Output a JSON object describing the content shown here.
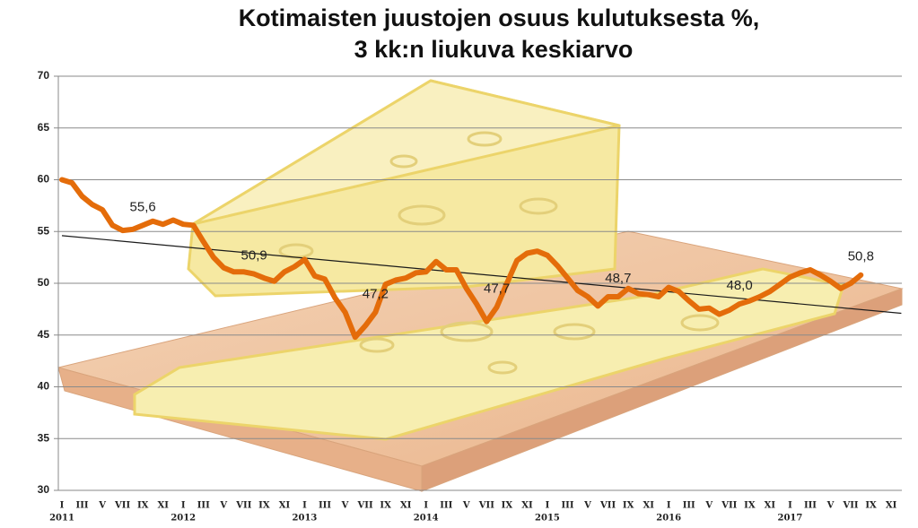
{
  "chart_data": {
    "type": "line",
    "title": [
      "Kotimaisten juustojen osuus kulutuksesta %,",
      "3 kk:n liukuva keskiarvo"
    ],
    "categories": [
      "I",
      null,
      "III",
      null,
      "V",
      null,
      "VII",
      null,
      "IX",
      null,
      "XI",
      null,
      "I",
      null,
      "III",
      null,
      "V",
      null,
      "VII",
      null,
      "IX",
      null,
      "XI",
      null,
      "I",
      null,
      "III",
      null,
      "V",
      null,
      "VII",
      null,
      "IX",
      null,
      "XI",
      null,
      "I",
      null,
      "III",
      null,
      "V",
      null,
      "VII",
      null,
      "IX",
      null,
      "XI",
      null,
      "I",
      null,
      "III",
      null,
      "V",
      null,
      "VII",
      null,
      "IX",
      null,
      "XI",
      null,
      "I",
      null,
      "III",
      null,
      "V",
      null,
      "VII",
      null,
      "IX",
      null,
      "XI",
      null,
      "I",
      null,
      "III",
      null,
      "V",
      null,
      "VII",
      null,
      "IX",
      null,
      "XI",
      null
    ],
    "years": [
      "2011",
      "2012",
      "2013",
      "2014",
      "2015",
      "2016",
      "2017"
    ],
    "values": [
      60.0,
      59.7,
      58.4,
      57.6,
      57.1,
      55.6,
      55.1,
      55.2,
      55.6,
      56.0,
      55.7,
      56.1,
      55.7,
      55.6,
      54.0,
      52.5,
      51.5,
      51.1,
      51.1,
      50.9,
      50.5,
      50.2,
      51.1,
      51.6,
      52.3,
      50.7,
      50.4,
      48.6,
      47.2,
      44.8,
      45.9,
      47.2,
      49.9,
      50.3,
      50.5,
      51.0,
      51.1,
      52.1,
      51.3,
      51.3,
      49.5,
      48.0,
      46.3,
      47.7,
      50.0,
      52.2,
      52.9,
      53.1,
      52.7,
      51.7,
      50.5,
      49.3,
      48.7,
      47.8,
      48.7,
      48.7,
      49.5,
      49.0,
      48.9,
      48.7,
      49.6,
      49.2,
      48.3,
      47.5,
      47.6,
      47.0,
      47.4,
      48.0,
      48.3,
      48.7,
      49.2,
      49.9,
      50.6,
      51.0,
      51.3,
      50.8,
      50.2,
      49.5,
      50.0,
      50.8,
      null,
      null,
      null,
      null
    ],
    "value_labels": [
      null,
      null,
      null,
      null,
      null,
      null,
      null,
      null,
      "55,6",
      null,
      null,
      null,
      null,
      null,
      null,
      null,
      null,
      null,
      null,
      "50,9",
      null,
      null,
      null,
      null,
      null,
      null,
      null,
      null,
      null,
      null,
      null,
      "47,2",
      null,
      null,
      null,
      null,
      null,
      null,
      null,
      null,
      null,
      null,
      null,
      "47,7",
      null,
      null,
      null,
      null,
      null,
      null,
      null,
      null,
      null,
      null,
      null,
      "48,7",
      null,
      null,
      null,
      null,
      null,
      null,
      null,
      null,
      null,
      null,
      null,
      "48,0",
      null,
      null,
      null,
      null,
      null,
      null,
      null,
      null,
      null,
      null,
      null,
      "50,8",
      null,
      null,
      null,
      null
    ],
    "color": "#e46c0a",
    "trend": {
      "values": [
        54.6,
        47.1
      ],
      "color": "#1a1a1a"
    },
    "ylim": [
      30,
      70
    ],
    "yticks": [
      30,
      35,
      40,
      45,
      50,
      55,
      60,
      65,
      70
    ],
    "grid": true
  }
}
